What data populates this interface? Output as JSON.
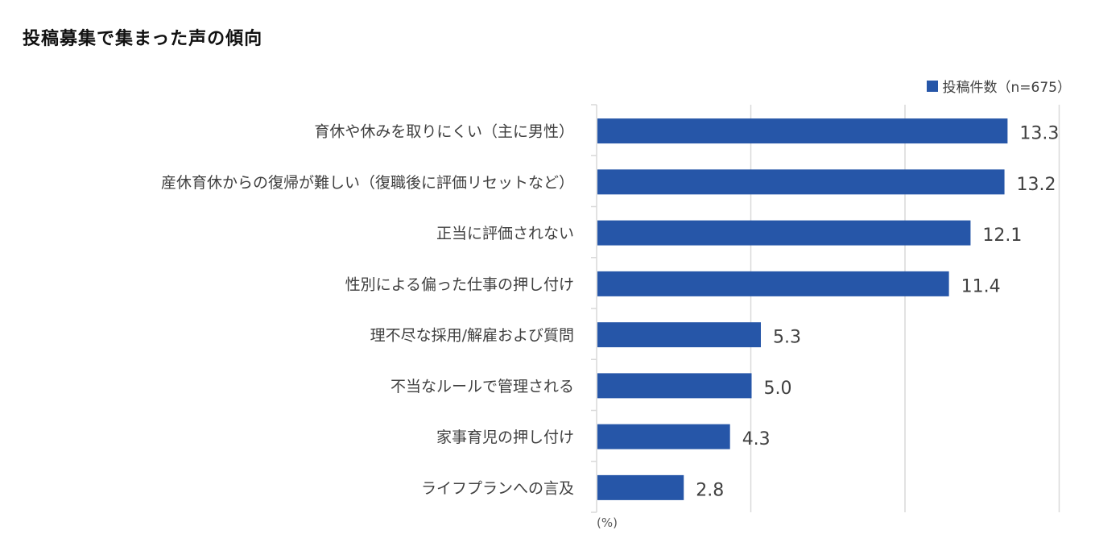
{
  "chart_data": {
    "type": "bar",
    "orientation": "horizontal",
    "title": "投稿募集で集まった声の傾向",
    "legend": "投稿件数（n=675）",
    "unit": "(%)",
    "xlim": [
      0,
      15
    ],
    "categories": [
      "育休や休みを取りにくい（主に男性）",
      "産休育休からの復帰が難しい（復職後に評価リセットなど）",
      "正当に評価されない",
      "性別による偏った仕事の押し付け",
      "理不尽な採用/解雇および質問",
      "不当なルールで管理される",
      "家事育児の押し付け",
      "ライフプランへの言及"
    ],
    "values": [
      13.3,
      13.2,
      12.1,
      11.4,
      5.3,
      5.0,
      4.3,
      2.8
    ],
    "value_labels": [
      "13.3",
      "13.2",
      "12.1",
      "11.4",
      "5.3",
      "5.0",
      "4.3",
      "2.8"
    ],
    "colors": {
      "bar": "#2656a8",
      "grid": "#d9d9d9"
    }
  }
}
